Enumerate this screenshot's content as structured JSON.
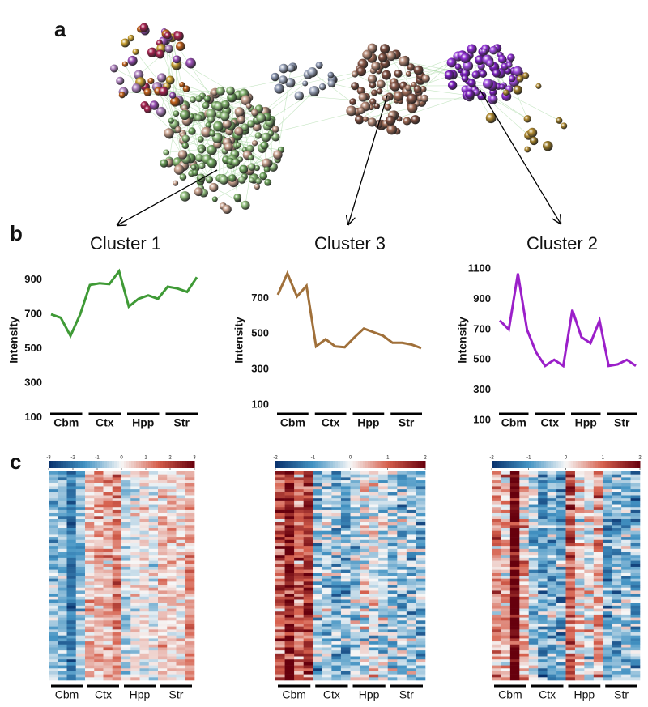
{
  "panel_labels": [
    "a",
    "b",
    "c"
  ],
  "chart_data": [
    {
      "type": "line",
      "title": "Cluster 1",
      "ylabel": "Intensity",
      "color": "#3f9a36",
      "groups": [
        "Cbm",
        "Ctx",
        "Hpp",
        "Str"
      ],
      "values": [
        700,
        680,
        575,
        700,
        870,
        880,
        875,
        950,
        745,
        790,
        810,
        790,
        860,
        850,
        830,
        915
      ],
      "ylim": [
        80,
        1020
      ],
      "yticks": [
        100,
        300,
        500,
        700,
        900
      ],
      "colorbar_ticks": [
        -3,
        -2,
        -1,
        0,
        1,
        2,
        3
      ]
    },
    {
      "type": "line",
      "title": "Cluster 3",
      "ylabel": "Intensity",
      "color": "#a0703a",
      "groups": [
        "Cbm",
        "Ctx",
        "Hpp",
        "Str"
      ],
      "values": [
        720,
        840,
        710,
        770,
        430,
        470,
        430,
        425,
        480,
        530,
        510,
        490,
        450,
        450,
        440,
        420
      ],
      "ylim": [
        10,
        920
      ],
      "yticks": [
        100,
        300,
        500,
        700
      ],
      "colorbar_ticks": [
        -2,
        -1,
        0,
        1,
        2
      ]
    },
    {
      "type": "line",
      "title": "Cluster 2",
      "ylabel": "Intensity",
      "color": "#9b1fc9",
      "groups": [
        "Cbm",
        "Ctx",
        "Hpp",
        "Str"
      ],
      "values": [
        760,
        700,
        1070,
        700,
        550,
        460,
        500,
        460,
        830,
        650,
        610,
        760,
        460,
        470,
        500,
        460
      ],
      "ylim": [
        95,
        1165
      ],
      "yticks": [
        100,
        300,
        500,
        700,
        900,
        1100
      ],
      "colorbar_ticks": [
        -2,
        -1,
        0,
        1,
        2
      ]
    }
  ]
}
